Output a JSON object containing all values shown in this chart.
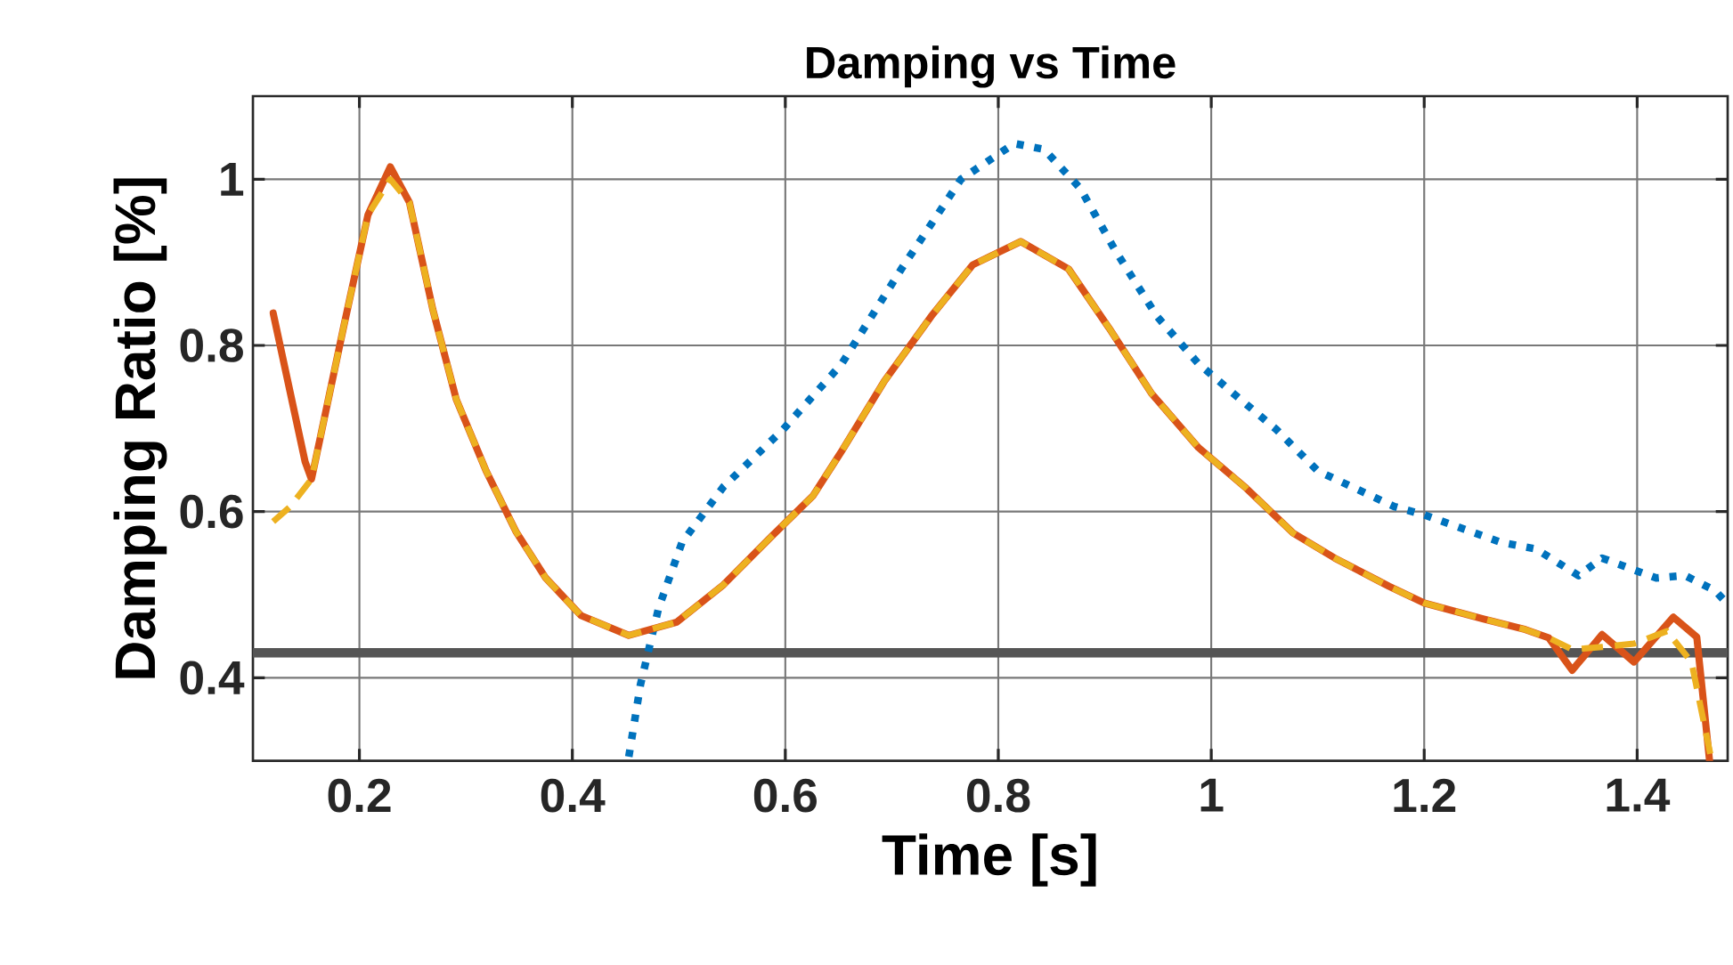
{
  "chart_data": {
    "type": "line",
    "title": "Damping vs Time",
    "xlabel": "Time [s]",
    "ylabel": "Damping Ratio [%]",
    "xlim": [
      0.1,
      1.485
    ],
    "ylim": [
      0.3,
      1.1
    ],
    "xticks": [
      0.2,
      0.4,
      0.6,
      0.8,
      1,
      1.2,
      1.4
    ],
    "yticks": [
      0.4,
      0.6,
      0.8,
      1
    ],
    "grid": true,
    "marker": "none",
    "ref_lines": [
      {
        "axis": "y",
        "value": 0.43,
        "color": "#555555",
        "line_style": "solid"
      }
    ],
    "series": [
      {
        "color": "#0072bd",
        "line_style": "dotted",
        "x": [
          0.453,
          0.464,
          0.481,
          0.503,
          0.542,
          0.598,
          0.653,
          0.709,
          0.765,
          0.815,
          0.843,
          0.877,
          0.91,
          0.949,
          0.988,
          1.021,
          1.061,
          1.1,
          1.172,
          1.2,
          1.272,
          1.305,
          1.345,
          1.367,
          1.418,
          1.445,
          1.473,
          1.484
        ],
        "values": [
          0.305,
          0.392,
          0.484,
          0.563,
          0.63,
          0.699,
          0.778,
          0.892,
          1.0,
          1.043,
          1.036,
          0.989,
          0.914,
          0.835,
          0.778,
          0.742,
          0.699,
          0.649,
          0.606,
          0.596,
          0.563,
          0.555,
          0.523,
          0.544,
          0.52,
          0.523,
          0.505,
          0.49
        ]
      },
      {
        "color": "#d95319",
        "line_style": "solid",
        "x": [
          0.119,
          0.149,
          0.155,
          0.185,
          0.208,
          0.229,
          0.247,
          0.269,
          0.291,
          0.319,
          0.347,
          0.375,
          0.408,
          0.453,
          0.498,
          0.542,
          0.587,
          0.626,
          0.653,
          0.693,
          0.737,
          0.776,
          0.821,
          0.866,
          0.904,
          0.944,
          0.988,
          1.033,
          1.077,
          1.116,
          1.167,
          1.2,
          1.255,
          1.295,
          1.317,
          1.339,
          1.367,
          1.397,
          1.434,
          1.456,
          1.468
        ],
        "values": [
          0.839,
          0.66,
          0.639,
          0.821,
          0.957,
          1.015,
          0.972,
          0.843,
          0.735,
          0.649,
          0.576,
          0.52,
          0.475,
          0.451,
          0.467,
          0.512,
          0.57,
          0.619,
          0.673,
          0.757,
          0.835,
          0.897,
          0.925,
          0.892,
          0.821,
          0.742,
          0.677,
          0.628,
          0.574,
          0.544,
          0.51,
          0.49,
          0.471,
          0.458,
          0.448,
          0.409,
          0.452,
          0.419,
          0.473,
          0.449,
          0.3
        ]
      },
      {
        "color": "#edb120",
        "line_style": "dashed",
        "x": [
          0.119,
          0.135,
          0.155,
          0.185,
          0.208,
          0.229,
          0.247,
          0.269,
          0.291,
          0.319,
          0.347,
          0.375,
          0.408,
          0.453,
          0.498,
          0.542,
          0.587,
          0.626,
          0.653,
          0.693,
          0.737,
          0.776,
          0.821,
          0.866,
          0.904,
          0.944,
          0.988,
          1.033,
          1.077,
          1.116,
          1.167,
          1.2,
          1.255,
          1.295,
          1.317,
          1.339,
          1.367,
          1.397,
          1.428,
          1.451,
          1.47
        ],
        "values": [
          0.588,
          0.606,
          0.639,
          0.821,
          0.957,
          1.0,
          0.972,
          0.843,
          0.735,
          0.649,
          0.576,
          0.52,
          0.475,
          0.451,
          0.467,
          0.512,
          0.57,
          0.619,
          0.673,
          0.757,
          0.835,
          0.897,
          0.925,
          0.892,
          0.821,
          0.742,
          0.677,
          0.628,
          0.574,
          0.544,
          0.51,
          0.49,
          0.471,
          0.458,
          0.448,
          0.434,
          0.437,
          0.441,
          0.456,
          0.419,
          0.3
        ]
      }
    ]
  }
}
